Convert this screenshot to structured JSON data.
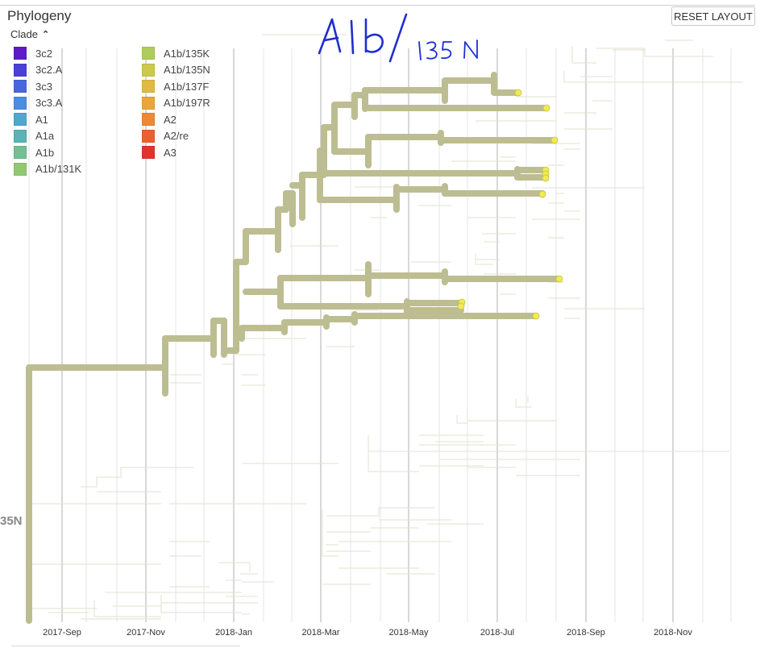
{
  "panel": {
    "title": "Phylogeny",
    "reset_button": "RESET LAYOUT",
    "clade_toggle_label": "Clade",
    "clade_toggle_icon": "chevron-up-icon"
  },
  "legend": [
    {
      "label": "3c2",
      "color": "#5f19c7"
    },
    {
      "label": "3c2.A",
      "color": "#4a3fd6"
    },
    {
      "label": "3c3",
      "color": "#4866e0"
    },
    {
      "label": "3c3.A",
      "color": "#4a8de0"
    },
    {
      "label": "A1",
      "color": "#4fa6ce"
    },
    {
      "label": "A1a",
      "color": "#5cb3b5"
    },
    {
      "label": "A1b",
      "color": "#74bf94"
    },
    {
      "label": "A1b/131K",
      "color": "#92c871"
    },
    {
      "label": "A1b/135K",
      "color": "#b0cc5c"
    },
    {
      "label": "A1b/135N",
      "color": "#cdc94c"
    },
    {
      "label": "A1b/137F",
      "color": "#e0bb44"
    },
    {
      "label": "A1b/197R",
      "color": "#eaa53d"
    },
    {
      "label": "A2",
      "color": "#ec8937"
    },
    {
      "label": "A2/re",
      "color": "#e8622f"
    },
    {
      "label": "A3",
      "color": "#e5322b"
    }
  ],
  "axis": {
    "labels": [
      "2017-Sep",
      "2017-Nov",
      "2018-Jan",
      "2018-Mar",
      "2018-May",
      "2018-Jul",
      "2018-Sep",
      "2018-Nov"
    ]
  },
  "annotation": {
    "handwritten": "A1b/135N"
  },
  "side_label": "35N",
  "colors": {
    "branch_selected": "#bdbd92",
    "branch_faded": "#e2e2cf",
    "tip": "#f0ea55",
    "gridline": "#e4e4e4"
  }
}
